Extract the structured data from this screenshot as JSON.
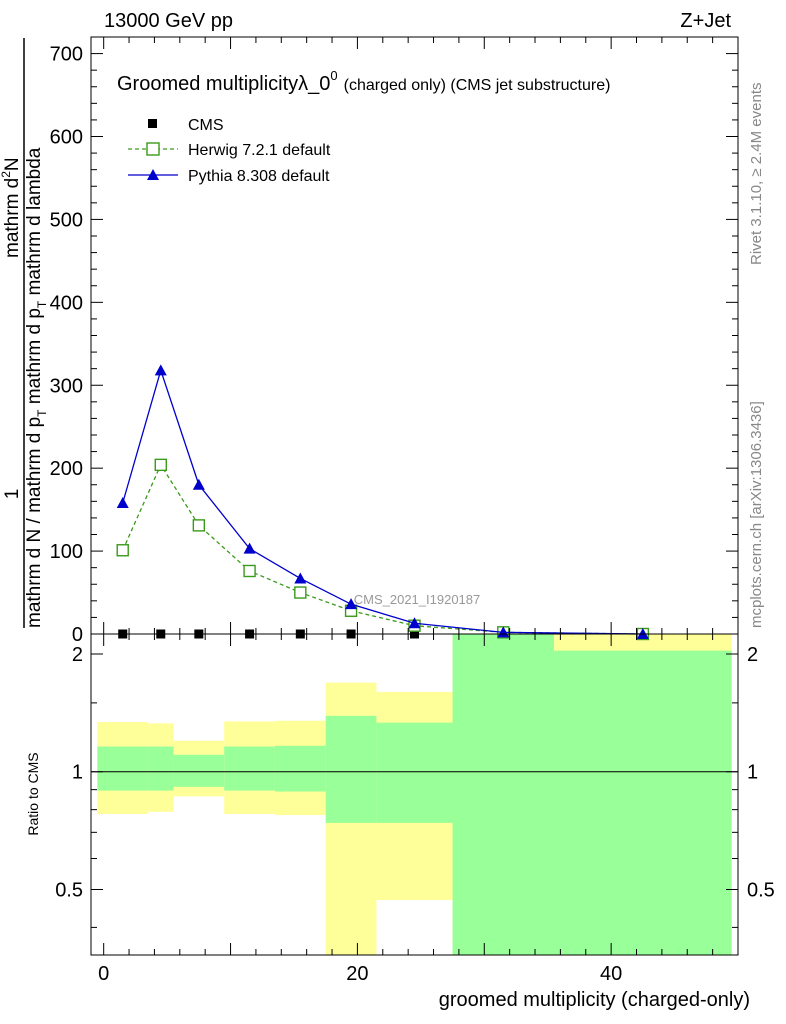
{
  "header": {
    "left": "13000 GeV pp",
    "right": "Z+Jet"
  },
  "side_labels": {
    "rivet": "Rivet 3.1.10, ≥ 2.4M events",
    "mcplots": "mcplots.cern.ch [arXiv:1306.3436]"
  },
  "watermark": "CMS_2021_I1920187",
  "chart_data": {
    "type": "line",
    "title_main": "Groomed multiplicityλ_0",
    "title_sup": "0",
    "title_tail": "(charged only) (CMS jet substructure)",
    "xlabel": "groomed multiplicity (charged-only)",
    "ylabel_top": {
      "one": "1",
      "num": "mathrm d",
      "num_sup": "2",
      "num_tail": "N",
      "den_a": "mathrm d N / mathrm d p",
      "den_a_sub": "T",
      "den_b": " mathrm d p",
      "den_b_sub": "T",
      "den_c": " mathrm d lambda"
    },
    "ylabel_ratio": "Ratio to CMS",
    "xlim": [
      -1,
      50
    ],
    "ylim": [
      0,
      720
    ],
    "ratio_ylim": [
      0.34,
      2.25
    ],
    "x_ticks": [
      0,
      20,
      40
    ],
    "y_ticks": [
      0,
      100,
      200,
      300,
      400,
      500,
      600,
      700
    ],
    "ratio_ticks": [
      0.5,
      1,
      2
    ],
    "legend": {
      "position": "top-left",
      "entries": [
        "CMS",
        "Herwig 7.2.1 default",
        "Pythia 8.308 default"
      ]
    },
    "series": [
      {
        "name": "CMS",
        "color": "#000000",
        "marker": "square",
        "x": [
          1.5,
          4.5,
          7.5,
          11.5,
          15.5,
          19.5,
          24.5,
          31.5,
          42.5
        ],
        "y": [
          0,
          0,
          0,
          0,
          0,
          0,
          0,
          0,
          0
        ]
      },
      {
        "name": "Herwig 7.2.1 default",
        "color": "#3a9a1a",
        "marker": "open-square",
        "line": "dashed",
        "x": [
          1.5,
          4.5,
          7.5,
          11.5,
          15.5,
          19.5,
          24.5,
          31.5,
          42.5
        ],
        "y": [
          101,
          204,
          131,
          76,
          50,
          28,
          10,
          2,
          0
        ]
      },
      {
        "name": "Pythia 8.308 default",
        "color": "#0000cc",
        "marker": "triangle",
        "line": "solid",
        "x": [
          1.5,
          4.5,
          7.5,
          11.5,
          15.5,
          19.5,
          24.5,
          31.5,
          42.5
        ],
        "y": [
          158,
          318,
          180,
          103,
          67,
          36,
          13,
          2,
          0
        ]
      }
    ],
    "ratio_bands": [
      {
        "xlo": -0.5,
        "xhi": 3.5,
        "g": [
          0.895,
          1.16
        ],
        "y": [
          0.78,
          1.34
        ]
      },
      {
        "xlo": 3.5,
        "xhi": 5.5,
        "g": [
          0.895,
          1.16
        ],
        "y": [
          0.79,
          1.33
        ]
      },
      {
        "xlo": 5.5,
        "xhi": 9.5,
        "g": [
          0.915,
          1.105
        ],
        "y": [
          0.865,
          1.2
        ]
      },
      {
        "xlo": 9.5,
        "xhi": 13.5,
        "g": [
          0.895,
          1.16
        ],
        "y": [
          0.78,
          1.345
        ]
      },
      {
        "xlo": 13.5,
        "xhi": 17.5,
        "g": [
          0.89,
          1.165
        ],
        "y": [
          0.775,
          1.35
        ]
      },
      {
        "xlo": 17.5,
        "xhi": 21.5,
        "g": [
          0.74,
          1.39
        ],
        "y": [
          0.34,
          1.69
        ]
      },
      {
        "xlo": 21.5,
        "xhi": 27.5,
        "g": [
          0.74,
          1.335
        ],
        "y": [
          0.47,
          1.6
        ]
      },
      {
        "xlo": 27.5,
        "xhi": 35.5,
        "g": [
          0.34,
          2.25
        ],
        "y": [
          0.34,
          2.25
        ]
      },
      {
        "xlo": 35.5,
        "xhi": 49.5,
        "g": [
          0.34,
          2.04
        ],
        "y": [
          0.34,
          2.25
        ]
      }
    ],
    "colors": {
      "band_stat": "#99ff99",
      "band_total": "#ffff99"
    }
  }
}
